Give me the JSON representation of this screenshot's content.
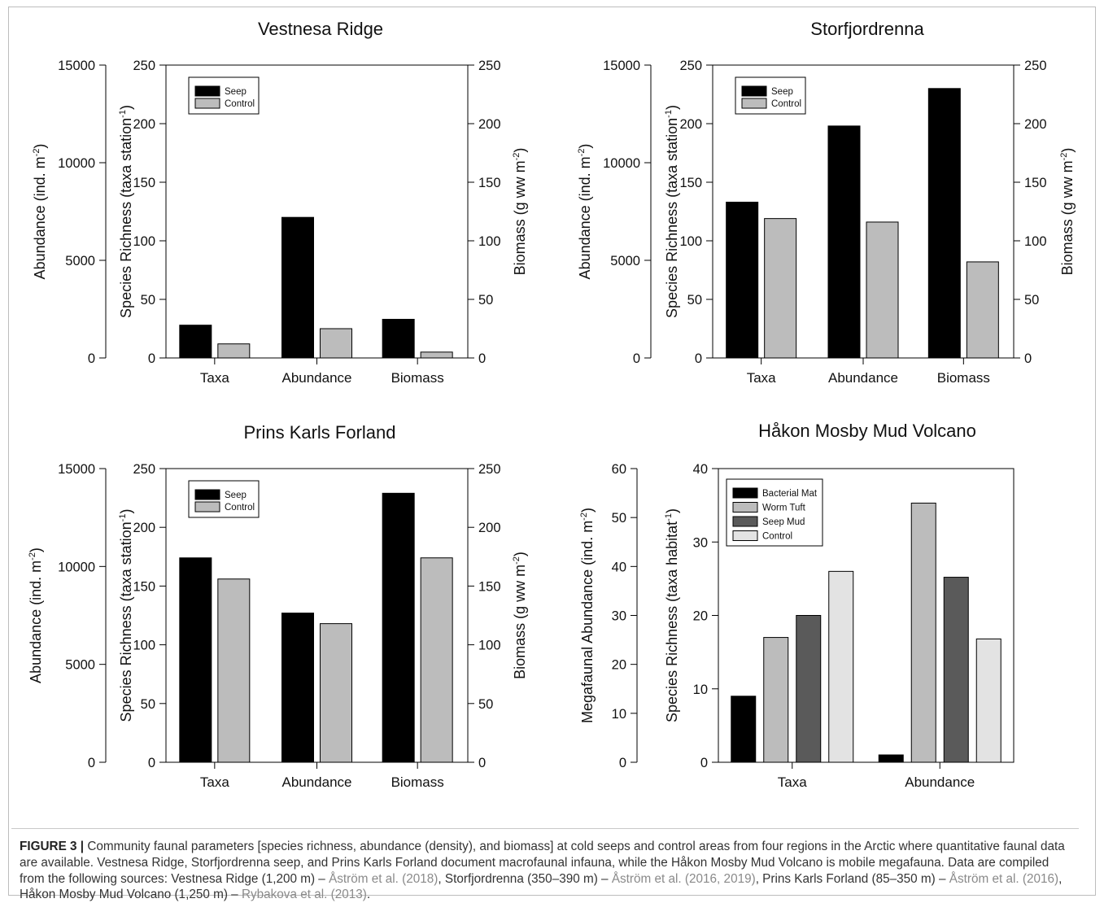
{
  "chart_data": [
    {
      "type": "bar",
      "title": "Vestnesa Ridge",
      "categories": [
        "Taxa",
        "Abundance",
        "Biomass"
      ],
      "series": [
        {
          "name": "Seep",
          "color": "#000000",
          "values": [
            28,
            120,
            33
          ]
        },
        {
          "name": "Control",
          "color": "#bcbcbc",
          "values": [
            12,
            25,
            5
          ]
        }
      ],
      "ylabel_left": "Abundance (ind. m-2)",
      "ylabel_left_base": "Abundance (ind. m",
      "ylabel_left_sup": "-2",
      "ylabel_left_suffix": ")",
      "ylabel_mid": "Species Richness (taxa station-1)",
      "ylabel_mid_base": "Species Richness (taxa station",
      "ylabel_mid_sup": "-1",
      "ylabel_mid_suffix": ")",
      "ylabel_right": "Biomass (g ww m-2)",
      "ylabel_right_base": "Biomass (g ww m",
      "ylabel_right_sup": "-2",
      "ylabel_right_suffix": ")",
      "yticks_left": [
        "0",
        "5000",
        "10000",
        "15000"
      ],
      "yticks_mid": [
        "0",
        "50",
        "100",
        "150",
        "200",
        "250"
      ],
      "yticks_right": [
        "0",
        "50",
        "100",
        "150",
        "200",
        "250"
      ],
      "ylim_left": [
        0,
        15000
      ],
      "ylim": [
        0,
        250
      ],
      "ylim_right": [
        0,
        250
      ],
      "legend_position": "top-left",
      "grid": false
    },
    {
      "type": "bar",
      "title": "Storfjordrenna",
      "categories": [
        "Taxa",
        "Abundance",
        "Biomass"
      ],
      "series": [
        {
          "name": "Seep",
          "color": "#000000",
          "values": [
            133,
            198,
            230
          ]
        },
        {
          "name": "Control",
          "color": "#bcbcbc",
          "values": [
            119,
            116,
            82
          ]
        }
      ],
      "ylabel_left": "Abundance (ind. m-2)",
      "ylabel_left_base": "Abundance (ind. m",
      "ylabel_left_sup": "-2",
      "ylabel_left_suffix": ")",
      "ylabel_mid": "Species Richness (taxa station-1)",
      "ylabel_mid_base": "Species Richness (taxa station",
      "ylabel_mid_sup": "-1",
      "ylabel_mid_suffix": ")",
      "ylabel_right": "Biomass (g ww m-2)",
      "ylabel_right_base": "Biomass (g ww m",
      "ylabel_right_sup": "-2",
      "ylabel_right_suffix": ")",
      "yticks_left": [
        "0",
        "5000",
        "10000",
        "15000"
      ],
      "yticks_mid": [
        "0",
        "50",
        "100",
        "150",
        "200",
        "250"
      ],
      "yticks_right": [
        "0",
        "50",
        "100",
        "150",
        "200",
        "250"
      ],
      "ylim_left": [
        0,
        15000
      ],
      "ylim": [
        0,
        250
      ],
      "ylim_right": [
        0,
        250
      ],
      "legend_position": "top-left",
      "grid": false
    },
    {
      "type": "bar",
      "title": "Prins Karls Forland",
      "categories": [
        "Taxa",
        "Abundance",
        "Biomass"
      ],
      "series": [
        {
          "name": "Seep",
          "color": "#000000",
          "values": [
            174,
            127,
            229
          ]
        },
        {
          "name": "Control",
          "color": "#bcbcbc",
          "values": [
            156,
            118,
            174
          ]
        }
      ],
      "ylabel_left": "Abundance (ind. m-2)",
      "ylabel_left_base": "Abundance (ind. m",
      "ylabel_left_sup": "-2",
      "ylabel_left_suffix": ")",
      "ylabel_mid": "Species Richness (taxa station-1)",
      "ylabel_mid_base": "Species Richness (taxa station",
      "ylabel_mid_sup": "-1",
      "ylabel_mid_suffix": ")",
      "ylabel_right": "Biomass (g ww m-2)",
      "ylabel_right_base": "Biomass (g ww m",
      "ylabel_right_sup": "-2",
      "ylabel_right_suffix": ")",
      "yticks_left": [
        "0",
        "5000",
        "10000",
        "15000"
      ],
      "yticks_mid": [
        "0",
        "50",
        "100",
        "150",
        "200",
        "250"
      ],
      "yticks_right": [
        "0",
        "50",
        "100",
        "150",
        "200",
        "250"
      ],
      "ylim_left": [
        0,
        15000
      ],
      "ylim": [
        0,
        250
      ],
      "ylim_right": [
        0,
        250
      ],
      "legend_position": "top-left",
      "grid": false
    },
    {
      "type": "bar",
      "title": "Håkon Mosby Mud Volcano",
      "categories": [
        "Taxa",
        "Abundance"
      ],
      "series": [
        {
          "name": "Bacterial Mat",
          "color": "#000000",
          "values": [
            9,
            1
          ]
        },
        {
          "name": "Worm Tuft",
          "color": "#bcbcbc",
          "values": [
            17,
            35.3
          ]
        },
        {
          "name": "Seep Mud",
          "color": "#5a5a5a",
          "values": [
            20,
            25.2
          ]
        },
        {
          "name": "Control",
          "color": "#e3e3e3",
          "values": [
            26,
            16.8
          ]
        }
      ],
      "ylabel_left": "Megafaunal Abundance (ind. m-2)",
      "ylabel_left_base": "Megafaunal Abundance (ind. m",
      "ylabel_left_sup": "-2",
      "ylabel_left_suffix": ")",
      "ylabel_mid": "Species Richness (taxa habitat-1)",
      "ylabel_mid_base": "Species Richness (taxa habitat",
      "ylabel_mid_sup": "-1",
      "ylabel_mid_suffix": ")",
      "yticks_left": [
        "0",
        "10",
        "20",
        "30",
        "40",
        "50",
        "60"
      ],
      "yticks_mid": [
        "0",
        "10",
        "20",
        "30",
        "40"
      ],
      "ylim_left": [
        0,
        60
      ],
      "ylim": [
        0,
        40
      ],
      "legend_position": "top-left",
      "grid": false
    }
  ],
  "caption": {
    "lead": "FIGURE 3 |",
    "text1": " Community faunal parameters [species richness, abundance (density), and biomass] at cold seeps and control areas from four regions in the Arctic where quantitative faunal data are available. Vestnesa Ridge, Storfjordrenna seep, and Prins Karls Forland document macrofaunal infauna, while the Håkon Mosby Mud Volcano is mobile megafauna. Data are compiled from the following sources: Vestnesa Ridge (1,200 m) – ",
    "ref1": "Åström et al. (2018)",
    "text2": ", Storfjordrenna (350–390 m) – ",
    "ref2": "Åström et al. (2016, 2019)",
    "text3": ", Prins Karls Forland (85–350 m) – ",
    "ref3": "Åström et al. (2016)",
    "text4": ", Håkon Mosby Mud Volcano (1,250 m) – ",
    "ref4": "Rybakova et al. (2013)",
    "text5": "."
  }
}
